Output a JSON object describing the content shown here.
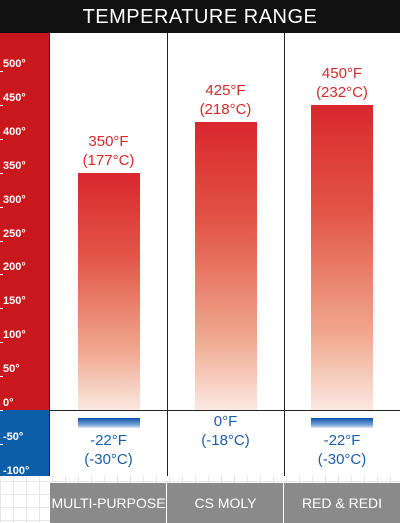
{
  "title": "TEMPERATURE RANGE",
  "colors": {
    "hot": "#c8171d",
    "cold": "#0d5ea8",
    "hot_text": "#d42a2a",
    "cold_text": "#1c5ea8",
    "footer": "#8a8a8a"
  },
  "chart_data": {
    "type": "bar",
    "title": "TEMPERATURE RANGE",
    "unit": "°F",
    "y_ticks": [
      "500°",
      "450°",
      "400°",
      "350°",
      "300°",
      "250°",
      "200°",
      "150°",
      "100°",
      "50°",
      "0°",
      "-50°",
      "-100°"
    ],
    "ylim": [
      -100,
      530
    ],
    "categories": [
      "MULTI-PURPOSE",
      "CS MOLY",
      "RED & REDI"
    ],
    "high": [
      350,
      425,
      450
    ],
    "low": [
      -22,
      0,
      -22
    ],
    "grid": true,
    "bars": [
      {
        "name": "MULTI-PURPOSE",
        "label_lines": [
          "MULTI-",
          "PURPOSE"
        ],
        "high_f": "350°F",
        "high_c": "(177°C)",
        "low_f": "-22°F",
        "low_c": "(-30°C)"
      },
      {
        "name": "CS MOLY",
        "label_lines": [
          "CS MOLY"
        ],
        "high_f": "425°F",
        "high_c": "(218°C)",
        "low_f": "0°F",
        "low_c": "(-18°C)"
      },
      {
        "name": "RED & REDI",
        "label_lines": [
          "RED & REDI"
        ],
        "high_f": "450°F",
        "high_c": "(232°C)",
        "low_f": "-22°F",
        "low_c": "(-30°C)"
      }
    ]
  }
}
